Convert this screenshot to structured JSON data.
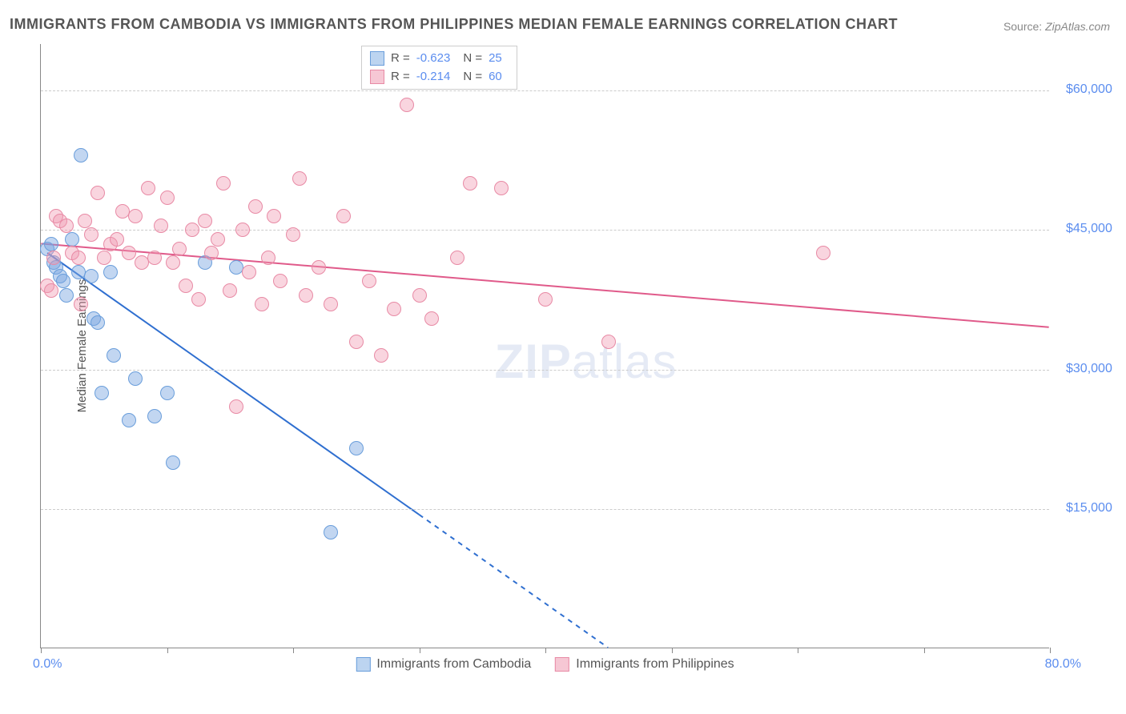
{
  "title": "IMMIGRANTS FROM CAMBODIA VS IMMIGRANTS FROM PHILIPPINES MEDIAN FEMALE EARNINGS CORRELATION CHART",
  "source_label": "Source:",
  "source_value": "ZipAtlas.com",
  "y_axis_title": "Median Female Earnings",
  "watermark_a": "ZIP",
  "watermark_b": "atlas",
  "chart": {
    "type": "scatter",
    "xlim": [
      0,
      80
    ],
    "ylim": [
      0,
      65000
    ],
    "x_min_label": "0.0%",
    "x_max_label": "80.0%",
    "x_ticks": [
      0,
      10,
      20,
      30,
      40,
      50,
      60,
      70,
      80
    ],
    "y_gridlines": [
      15000,
      30000,
      45000,
      60000
    ],
    "y_tick_labels": [
      "$15,000",
      "$30,000",
      "$45,000",
      "$60,000"
    ],
    "background_color": "#ffffff",
    "grid_color": "#cccccc",
    "axis_color": "#888888",
    "tick_label_color": "#5b8def",
    "point_radius": 9,
    "series": [
      {
        "name": "Immigrants from Cambodia",
        "fill_color": "rgba(120,165,225,0.45)",
        "stroke_color": "#6a9edb",
        "swatch_fill": "#bcd4f0",
        "swatch_stroke": "#6a9edb",
        "R_label": "R =",
        "R_value": "-0.623",
        "N_label": "N =",
        "N_value": "25",
        "trend": {
          "x1": 0.5,
          "y1": 42500,
          "x2": 45,
          "y2": 0,
          "solid_until_x": 30,
          "color": "#2f6fd0",
          "width": 2
        },
        "points": [
          [
            0.5,
            43000
          ],
          [
            0.8,
            43500
          ],
          [
            1.0,
            41500
          ],
          [
            1.2,
            41000
          ],
          [
            1.5,
            40000
          ],
          [
            1.8,
            39500
          ],
          [
            2.5,
            44000
          ],
          [
            3.0,
            40500
          ],
          [
            3.2,
            53000
          ],
          [
            4.0,
            40000
          ],
          [
            4.2,
            35500
          ],
          [
            4.5,
            35000
          ],
          [
            4.8,
            27500
          ],
          [
            5.5,
            40500
          ],
          [
            5.8,
            31500
          ],
          [
            7.0,
            24500
          ],
          [
            7.5,
            29000
          ],
          [
            9.0,
            25000
          ],
          [
            10.0,
            27500
          ],
          [
            10.5,
            20000
          ],
          [
            13.0,
            41500
          ],
          [
            15.5,
            41000
          ],
          [
            23.0,
            12500
          ],
          [
            25.0,
            21500
          ],
          [
            2.0,
            38000
          ]
        ]
      },
      {
        "name": "Immigrants from Philippines",
        "fill_color": "rgba(240,150,175,0.40)",
        "stroke_color": "#e88aa5",
        "swatch_fill": "#f6c7d4",
        "swatch_stroke": "#e88aa5",
        "R_label": "R =",
        "R_value": "-0.214",
        "N_label": "N =",
        "N_value": "60",
        "trend": {
          "x1": 0,
          "y1": 43500,
          "x2": 80,
          "y2": 34500,
          "solid_until_x": 80,
          "color": "#e05a8a",
          "width": 2
        },
        "points": [
          [
            0.5,
            39000
          ],
          [
            0.8,
            38500
          ],
          [
            1.0,
            42000
          ],
          [
            1.2,
            46500
          ],
          [
            1.5,
            46000
          ],
          [
            2.0,
            45500
          ],
          [
            2.5,
            42500
          ],
          [
            3.0,
            42000
          ],
          [
            3.2,
            37000
          ],
          [
            3.5,
            46000
          ],
          [
            4.0,
            44500
          ],
          [
            4.5,
            49000
          ],
          [
            5.0,
            42000
          ],
          [
            5.5,
            43500
          ],
          [
            6.0,
            44000
          ],
          [
            6.5,
            47000
          ],
          [
            7.0,
            42500
          ],
          [
            7.5,
            46500
          ],
          [
            8.0,
            41500
          ],
          [
            8.5,
            49500
          ],
          [
            9.0,
            42000
          ],
          [
            9.5,
            45500
          ],
          [
            10.0,
            48500
          ],
          [
            10.5,
            41500
          ],
          [
            11.0,
            43000
          ],
          [
            11.5,
            39000
          ],
          [
            12.0,
            45000
          ],
          [
            12.5,
            37500
          ],
          [
            13.0,
            46000
          ],
          [
            13.5,
            42500
          ],
          [
            14.0,
            44000
          ],
          [
            14.5,
            50000
          ],
          [
            15.0,
            38500
          ],
          [
            15.5,
            26000
          ],
          [
            16.0,
            45000
          ],
          [
            16.5,
            40500
          ],
          [
            17.0,
            47500
          ],
          [
            17.5,
            37000
          ],
          [
            18.0,
            42000
          ],
          [
            18.5,
            46500
          ],
          [
            19.0,
            39500
          ],
          [
            20.0,
            44500
          ],
          [
            20.5,
            50500
          ],
          [
            21.0,
            38000
          ],
          [
            22.0,
            41000
          ],
          [
            23.0,
            37000
          ],
          [
            24.0,
            46500
          ],
          [
            25.0,
            33000
          ],
          [
            26.0,
            39500
          ],
          [
            27.0,
            31500
          ],
          [
            28.0,
            36500
          ],
          [
            29.0,
            58500
          ],
          [
            30.0,
            38000
          ],
          [
            31.0,
            35500
          ],
          [
            33.0,
            42000
          ],
          [
            34.0,
            50000
          ],
          [
            36.5,
            49500
          ],
          [
            40.0,
            37500
          ],
          [
            45.0,
            33000
          ],
          [
            62.0,
            42500
          ]
        ]
      }
    ]
  },
  "legend": {
    "items": [
      {
        "label": "Immigrants from Cambodia"
      },
      {
        "label": "Immigrants from Philippines"
      }
    ]
  }
}
